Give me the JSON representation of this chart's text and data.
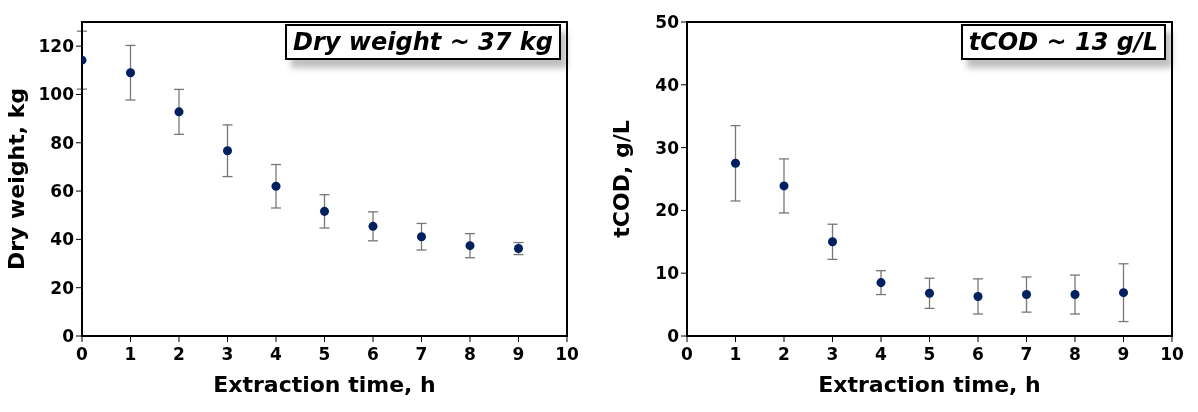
{
  "chart_data": [
    {
      "type": "scatter",
      "xlabel": "Extraction time, h",
      "ylabel": "Dry weight, kg",
      "annotations": [
        "Dry weight ~ 37 kg"
      ],
      "marker": "circle",
      "x": [
        0,
        1,
        2,
        3,
        4,
        5,
        6,
        7,
        8,
        9
      ],
      "series": [
        {
          "color": "#002060",
          "values": [
            114.2,
            109,
            92.8,
            76.7,
            62,
            51.6,
            45.4,
            41.1,
            37.4,
            36.2
          ],
          "errors": [
            12,
            11.3,
            9.3,
            10.7,
            9,
            6.9,
            6,
            5.5,
            5,
            2.5
          ]
        }
      ],
      "xlim": [
        0,
        10
      ],
      "xticks": [
        0,
        1,
        2,
        3,
        4,
        5,
        6,
        7,
        8,
        9,
        10
      ],
      "ylim": [
        0,
        130
      ],
      "yticks": [
        0,
        20,
        40,
        60,
        80,
        100,
        120
      ]
    },
    {
      "type": "scatter",
      "xlabel": "Extraction time, h",
      "ylabel": "tCOD, g/L",
      "annotations": [
        "tCOD ~ 13 g/L"
      ],
      "marker": "circle",
      "x": [
        1,
        2,
        3,
        4,
        5,
        6,
        7,
        8,
        9
      ],
      "series": [
        {
          "color": "#002060",
          "values": [
            27.5,
            23.9,
            15,
            8.5,
            6.8,
            6.3,
            6.6,
            6.6,
            6.9
          ],
          "errors": [
            6,
            4.3,
            2.8,
            1.9,
            2.4,
            2.8,
            2.8,
            3.1,
            4.6
          ]
        }
      ],
      "xlim": [
        0,
        10
      ],
      "xticks": [
        0,
        1,
        2,
        3,
        4,
        5,
        6,
        7,
        8,
        9,
        10
      ],
      "ylim": [
        0,
        50
      ],
      "yticks": [
        0,
        10,
        20,
        30,
        40,
        50
      ]
    }
  ]
}
